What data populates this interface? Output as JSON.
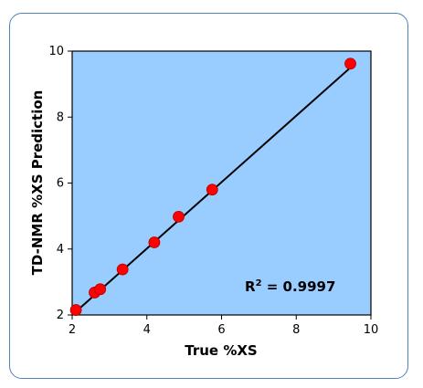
{
  "chart_data": {
    "type": "scatter",
    "title": "",
    "xlabel": "True %XS",
    "ylabel": "TD-NMR %XS Prediction",
    "xlim": [
      2,
      10
    ],
    "ylim": [
      2,
      10
    ],
    "x_ticks": [
      "2",
      "4",
      "6",
      "8",
      "10"
    ],
    "y_ticks": [
      "2",
      "4",
      "6",
      "8",
      "10"
    ],
    "grid": false,
    "legend": "none",
    "plot_background": "#99ccff",
    "point_color": "#ff0000",
    "line_color": "#000000",
    "frame_color": "#4f81bd",
    "points": [
      {
        "x": 2.1,
        "y": 2.15
      },
      {
        "x": 2.6,
        "y": 2.68
      },
      {
        "x": 2.75,
        "y": 2.78
      },
      {
        "x": 3.35,
        "y": 3.38
      },
      {
        "x": 4.2,
        "y": 4.2
      },
      {
        "x": 4.85,
        "y": 4.98
      },
      {
        "x": 5.75,
        "y": 5.8
      },
      {
        "x": 9.45,
        "y": 9.62
      }
    ],
    "trendline": {
      "x1": 2.0,
      "y1": 2.0,
      "x2": 9.55,
      "y2": 9.6
    },
    "annotation": {
      "label_main": "R",
      "label_sup": "2",
      "label_rest": " = 0.9997"
    }
  }
}
